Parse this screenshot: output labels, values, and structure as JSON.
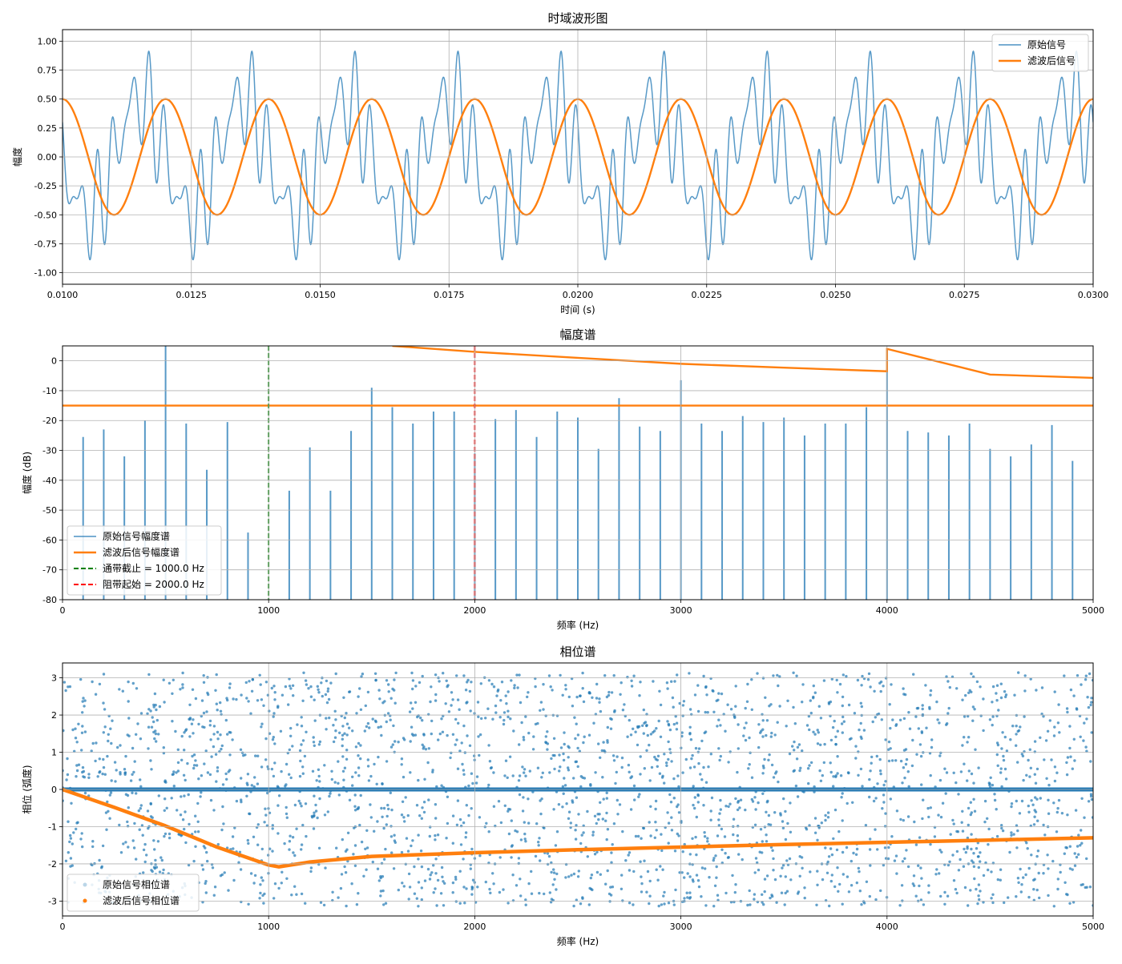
{
  "chart_data": [
    {
      "type": "line",
      "title": "时域波形图",
      "xlabel": "时间 (s)",
      "ylabel": "幅度",
      "xlim": [
        0.01,
        0.03
      ],
      "ylim": [
        -1.1,
        1.1
      ],
      "grid": true,
      "legend_position": "top-right",
      "x_ticks": [
        "0.0100",
        "0.0125",
        "0.0150",
        "0.0175",
        "0.0200",
        "0.0225",
        "0.0250",
        "0.0275",
        "0.0300"
      ],
      "y_ticks": [
        "-1.00",
        "-0.75",
        "-0.50",
        "-0.25",
        "0.00",
        "0.25",
        "0.50",
        "0.75",
        "1.00"
      ],
      "series": [
        {
          "name": "原始信号",
          "color": "#1f77b4",
          "components": [
            {
              "frequency_hz": 500,
              "amplitude": 0.5,
              "phase": 1.5708
            },
            {
              "frequency_hz": 3000,
              "amplitude": 0.3,
              "phase": 0
            },
            {
              "frequency_hz": 4000,
              "amplitude": 0.2,
              "phase": 1.5708
            }
          ]
        },
        {
          "name": "滤波后信号",
          "color": "#ff7f0e",
          "components": [
            {
              "frequency_hz": 500,
              "amplitude": 0.5,
              "phase": 0.0
            }
          ]
        }
      ]
    },
    {
      "type": "line",
      "title": "幅度谱",
      "xlabel": "频率 (Hz)",
      "ylabel": "幅度 (dB)",
      "xlim": [
        0,
        5000
      ],
      "ylim": [
        -80,
        5
      ],
      "grid": true,
      "legend_position": "bottom-left",
      "x_ticks": [
        "0",
        "1000",
        "2000",
        "3000",
        "4000",
        "5000"
      ],
      "y_ticks": [
        "0",
        "-10",
        "-20",
        "-30",
        "-40",
        "-50",
        "-60",
        "-70",
        "-80"
      ],
      "series": [
        {
          "name": "原始信号幅度谱",
          "color": "#1f77b4",
          "style": "stems",
          "x": [
            100,
            200,
            300,
            400,
            500,
            600,
            700,
            800,
            900,
            1100,
            1200,
            1300,
            1400,
            1500,
            1600,
            1700,
            1800,
            1900,
            2000,
            2100,
            2200,
            2300,
            2400,
            2500,
            2600,
            2700,
            2800,
            2900,
            3000,
            3100,
            3200,
            3300,
            3400,
            3500,
            3600,
            3700,
            3800,
            3900,
            4000,
            4100,
            4200,
            4300,
            4400,
            4500,
            4600,
            4700,
            4800,
            4900
          ],
          "y": [
            -25.5,
            -23,
            -32,
            -20,
            5,
            -21,
            -36.5,
            -20.5,
            -57.5,
            -43.5,
            -29,
            -43.5,
            -23.5,
            -9,
            -15.5,
            -21,
            -17,
            -17,
            -31,
            -19.5,
            -16.5,
            -25.5,
            -17,
            -19,
            -29.5,
            -12.5,
            -22,
            -23.5,
            -6.5,
            -21,
            -23.5,
            -18.5,
            -20.5,
            -19,
            -25,
            -21,
            -21,
            -15.5,
            -3,
            -23.5,
            -24,
            -25,
            -21,
            -29.5,
            -32,
            -28,
            -21.5,
            -33.5
          ]
        },
        {
          "name": "滤波后信号幅度谱",
          "color": "#ff7f0e",
          "x": [
            1600,
            2000,
            2500,
            3000,
            3500,
            4000,
            4000,
            4500,
            5000
          ],
          "y": [
            5,
            3,
            1,
            -1,
            -2.3,
            -3.5,
            4,
            -4.6,
            -5.7
          ],
          "floor_db": -15
        }
      ],
      "reference_lines": [
        {
          "name": "通带截止 = 1000.0 Hz",
          "x": 1000,
          "color": "#008000",
          "style": "dashed"
        },
        {
          "name": "阻带起始 = 2000.0 Hz",
          "x": 2000,
          "color": "#ff0000",
          "style": "dashed"
        }
      ]
    },
    {
      "type": "scatter",
      "title": "相位谱",
      "xlabel": "频率 (Hz)",
      "ylabel": "相位 (弧度)",
      "xlim": [
        0,
        5000
      ],
      "ylim": [
        -3.4,
        3.4
      ],
      "grid": true,
      "legend_position": "bottom-left",
      "x_ticks": [
        "0",
        "1000",
        "2000",
        "3000",
        "4000",
        "5000"
      ],
      "y_ticks": [
        "-3",
        "-2",
        "-1",
        "0",
        "1",
        "2",
        "3"
      ],
      "series": [
        {
          "name": "原始信号相位谱",
          "color": "#1f77b4",
          "distribution": "uniform",
          "phase_range": [
            -3.1416,
            3.1416
          ],
          "baseline": 0
        },
        {
          "name": "滤波后信号相位谱",
          "color": "#ff7f0e",
          "x": [
            0,
            250,
            500,
            750,
            1000,
            1050,
            1200,
            1500,
            2000,
            2500,
            3000,
            3500,
            4000,
            4500,
            5000
          ],
          "y": [
            0,
            -0.48,
            -0.98,
            -1.55,
            -2.03,
            -2.08,
            -1.95,
            -1.8,
            -1.7,
            -1.62,
            -1.55,
            -1.48,
            -1.42,
            -1.36,
            -1.3
          ]
        }
      ]
    }
  ]
}
